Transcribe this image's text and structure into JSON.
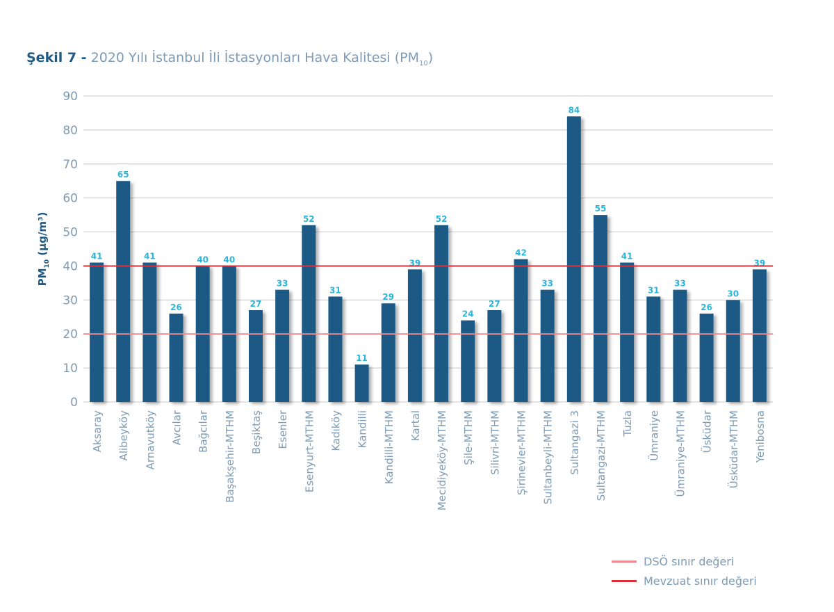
{
  "chart_data": {
    "type": "bar",
    "title_prefix": "Şekil 7 -",
    "title": "2020 Yılı İstanbul İli İstasyonları Hava Kalitesi (PM",
    "title_sub": "10",
    "title_end": ")",
    "ylabel": "PM",
    "ylabel_sub": "10",
    "ylabel_unit": "(µg/m³)",
    "xlabel": "",
    "ylim": [
      0,
      90
    ],
    "yticks": [
      0,
      10,
      20,
      30,
      40,
      50,
      60,
      70,
      80,
      90
    ],
    "grid": true,
    "categories": [
      "Aksaray",
      "Alibeyköy",
      "Arnavutköy",
      "Avcılar",
      "Bağcılar",
      "Başakşehir-MTHM",
      "Beşiktaş",
      "Esenler",
      "Esenyurt-MTHM",
      "Kadıköy",
      "Kandilli",
      "Kandilli-MTHM",
      "Kartal",
      "Mecidiyeköy-MTHM",
      "Şile-MTHM",
      "Silivri-MTHM",
      "Şirinevler-MTHM",
      "Sultanbeyli-MTHM",
      "Sultangazi 3",
      "Sultangazi-MTHM",
      "Tuzla",
      "Ümraniye",
      "Ümraniye-MTHM",
      "Üsküdar",
      "Üsküdar-MTHM",
      "Yenibosna"
    ],
    "values": [
      41,
      65,
      41,
      26,
      40,
      40,
      27,
      33,
      52,
      31,
      11,
      29,
      39,
      52,
      24,
      27,
      42,
      33,
      84,
      55,
      41,
      31,
      33,
      26,
      30,
      39
    ],
    "reference_lines": [
      {
        "name": "DSÖ sınır değeri",
        "value": 20,
        "color": "#ee8a8f"
      },
      {
        "name": "Mevzuat sınır değeri",
        "value": 40,
        "color": "#d8323c"
      }
    ],
    "legend_position": "bottom-right",
    "colors": {
      "bar": "#1f5a85",
      "label": "#2bb5d9",
      "axis_text": "#7d9bb5"
    }
  }
}
